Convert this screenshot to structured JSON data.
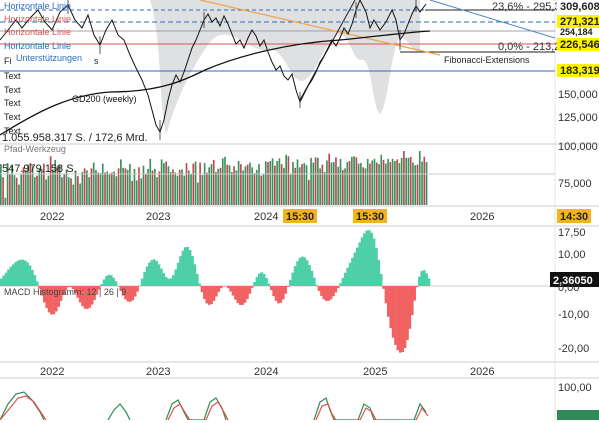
{
  "colors": {
    "up": "#3a8f5c",
    "down": "#c1454c",
    "macd_pos": "#4fcfa8",
    "macd_neg": "#f16363",
    "horizontal_line_blue": "#2a6ebd",
    "horizontal_line_red": "#d9534f",
    "fib_line": "#4a86c5",
    "trend_orange": "#f2a34a",
    "price_tag": "#fff200",
    "time_tag": "#f5b324",
    "cloud": "#d9dadd"
  },
  "price_panel": {
    "annotations": [
      {
        "text": "Horizontale Linie",
        "color": "#2a6ebd"
      },
      {
        "text": "Horizontale Linie",
        "color": "#d9534f"
      },
      {
        "text": "Horizontale Linie",
        "color": "#d9534f"
      },
      {
        "text": "Horizontale Linie",
        "color": "#2a6ebd"
      },
      {
        "text": "Unterstützungen",
        "color": "#2a6ebd"
      },
      {
        "text": "Fi",
        "color": "#222222"
      },
      {
        "text": "s",
        "color": "#222222"
      },
      {
        "text": "Text",
        "color": "#222222"
      },
      {
        "text": "Text",
        "color": "#222222"
      },
      {
        "text": "Text",
        "color": "#222222"
      },
      {
        "text": "Text",
        "color": "#222222"
      },
      {
        "text": "Text",
        "color": "#222222"
      }
    ],
    "gd200_label": "GD200 (weekly)",
    "fib_labels": [
      "23,6% - 295,3",
      "0,0% - 213,2"
    ],
    "fib_extensions_label": "Fibonacci-Extensions",
    "price_tags": [
      "309,608",
      "271,321",
      "254,184",
      "226,546",
      "183,319"
    ],
    "right_axis": [
      "150,000",
      "125,000"
    ]
  },
  "volume_panel": {
    "total_label": "1.055.958.317 S. / 172,6 Mrd.",
    "tool_label": "Pfad-Werkzeug",
    "volume_label": "547.979.158 S.",
    "right_axis": [
      "100,000",
      "75,000"
    ],
    "volume_values": [
      7800000.0,
      5300000.0,
      1400000.0,
      8000000.0,
      5800000.0,
      7500000.0,
      5700000.0,
      5200000.0,
      3900000.0,
      5800000.0,
      7200000.0,
      6600000.0,
      7700000.0,
      8000000.0,
      7400000.0,
      5300000.0,
      5600000.0,
      6900000.0,
      6900000.0,
      7900000.0,
      4900000.0,
      5600000.0,
      9300000.0,
      6800000.0,
      8600000.0,
      7400000.0,
      7600000.0,
      5300000.0,
      6000000.0,
      6800000.0,
      5300000.0,
      5100000.0,
      3900000.0,
      6500000.0,
      5500000.0,
      4100000.0,
      6300000.0,
      7000000.0,
      6600000.0,
      5300000.0,
      7000000.0,
      8100000.0,
      6700000.0,
      6200000.0,
      6100000.0,
      7900000.0,
      6200000.0,
      6400000.0,
      5900000.0,
      6200000.0,
      6400000.0,
      5500000.0,
      7000000.0,
      8700000.0,
      7100000.0,
      7000000.0,
      6700000.0,
      7800000.0,
      4600000.0,
      6900000.0,
      4700000.0,
      7200000.0,
      5100000.0,
      7500000.0,
      6000000.0,
      6900000.0,
      8800000.0,
      6600000.0,
      6900000.0,
      5300000.0,
      6400000.0,
      8700000.0,
      8000000.0,
      8300000.0,
      7400000.0,
      6300000.0,
      6800000.0,
      6200000.0,
      5600000.0,
      6700000.0,
      6800000.0,
      5600000.0,
      8000000.0,
      6600000.0,
      5900000.0,
      7900000.0,
      8300000.0,
      4300000.0,
      8100000.0,
      5700000.0,
      8000000.0,
      6200000.0,
      7200000.0,
      7800000.0,
      8600000.0,
      6300000.0,
      6900000.0,
      7100000.0,
      8900000.0,
      9200000.0,
      7700000.0,
      7600000.0,
      6300000.0,
      7400000.0,
      6600000.0,
      8400000.0,
      7800000.0,
      6600000.0,
      7400000.0,
      7700000.0,
      8100000.0,
      7200000.0,
      6100000.0,
      6700000.0,
      7800000.0,
      5600000.0,
      6000000.0,
      8300000.0,
      8200000.0,
      8400000.0,
      8900000.0,
      7500000.0,
      8400000.0,
      8900000.0,
      7800000.0,
      7100000.0,
      9600000.0,
      9300000.0,
      5800000.0,
      8200000.0,
      7100000.0,
      8700000.0,
      7200000.0,
      7800000.0,
      8000000.0,
      7600000.0,
      4800000.0,
      9000000.0,
      8100000.0,
      9100000.0,
      9000000.0,
      7000000.0,
      7700000.0,
      6300000.0,
      8500000.0,
      9800000.0,
      8100000.0,
      8200000.0,
      9100000.0,
      7300000.0,
      8800000.0,
      6700000.0,
      7000000.0,
      8200000.0,
      8400000.0,
      9200000.0,
      9300000.0,
      9100000.0,
      7900000.0,
      8000000.0,
      7200000.0,
      7000000.0,
      8800000.0,
      7900000.0,
      8500000.0,
      8800000.0,
      8100000.0,
      7800000.0,
      9600000.0,
      8600000.0,
      7900000.0,
      8800000.0,
      8200000.0,
      8800000.0,
      8400000.0,
      8700000.0,
      8000000.0,
      9000000.0,
      10300000.0,
      9000000.0,
      9000000.0,
      9200000.0,
      8100000.0,
      7600000.0,
      7700000.0,
      10300000.0,
      8300000.0,
      9200000.0,
      8200000.0
    ]
  },
  "time_axis": {
    "labels": [
      "2022",
      "2023",
      "2024",
      "2025",
      "2026"
    ],
    "time_tags": [
      "15:30",
      "15:30"
    ],
    "right_tag": "14:30"
  },
  "macd_panel": {
    "label": "MACD Histogramm: 12 | 26 | 9",
    "value_tag": "2,36050",
    "right_axis": [
      "17,50",
      "10,00",
      "0,00",
      "-10,00",
      "-20,00"
    ],
    "histogram_values": [
      2.4,
      3.4,
      4.3,
      5.3,
      6.2,
      7.0,
      7.7,
      8.2,
      8.5,
      8.5,
      8.2,
      7.6,
      6.6,
      5.2,
      3.5,
      1.5,
      -0.8,
      -3.1,
      -5.3,
      -7.1,
      -8.5,
      -9.2,
      -9.1,
      -8.2,
      -6.7,
      -4.8,
      -2.9,
      -1.4,
      -0.4,
      -0.3,
      -1.0,
      -2.3,
      -3.8,
      -5.3,
      -6.5,
      -7.3,
      -7.4,
      -7.0,
      -6.0,
      -4.5,
      -2.8,
      -1.1,
      0.6,
      2.1,
      3.2,
      3.6,
      3.5,
      2.7,
      1.5,
      0.0,
      -1.6,
      -3.1,
      -4.3,
      -5.0,
      -5.1,
      -4.6,
      -3.4,
      -1.8,
      0.2,
      2.4,
      4.5,
      6.3,
      7.6,
      8.4,
      8.6,
      8.1,
      7.0,
      5.6,
      4.1,
      2.9,
      2.3,
      2.5,
      3.5,
      5.3,
      7.5,
      9.6,
      11.4,
      12.5,
      12.6,
      11.6,
      9.7,
      7.0,
      3.9,
      0.8,
      -2.0,
      -4.2,
      -5.6,
      -6.1,
      -5.8,
      -4.8,
      -3.4,
      -1.9,
      -0.7,
      -0.1,
      -0.1,
      -0.7,
      -1.8,
      -3.1,
      -4.4,
      -5.5,
      -6.1,
      -6.1,
      -5.4,
      -4.2,
      -2.5,
      -0.6,
      1.3,
      2.9,
      4.0,
      4.4,
      3.9,
      2.6,
      0.8,
      -1.3,
      -3.3,
      -4.8,
      -5.6,
      -5.4,
      -4.3,
      -2.5,
      -0.3,
      2.0,
      4.3,
      6.4,
      8.0,
      9.1,
      9.5,
      9.2,
      8.3,
      6.8,
      4.9,
      2.7,
      0.4,
      -1.6,
      -3.2,
      -4.3,
      -4.8,
      -4.8,
      -4.3,
      -3.3,
      -2.1,
      -0.7,
      0.9,
      2.6,
      4.3,
      5.9,
      7.5,
      9.1,
      10.8,
      12.4,
      14.1,
      15.7,
      17.0,
      17.9,
      18.0,
      17.2,
      15.3,
      12.3,
      8.4,
      3.9,
      -0.9,
      -5.6,
      -9.9,
      -13.6,
      -16.7,
      -19.0,
      -20.7,
      -21.5,
      -21.3,
      -20.0,
      -17.4,
      -13.8,
      -9.4,
      -4.7,
      -0.4,
      3.0,
      4.8,
      5.1,
      4.1,
      2.4
    ]
  }
}
